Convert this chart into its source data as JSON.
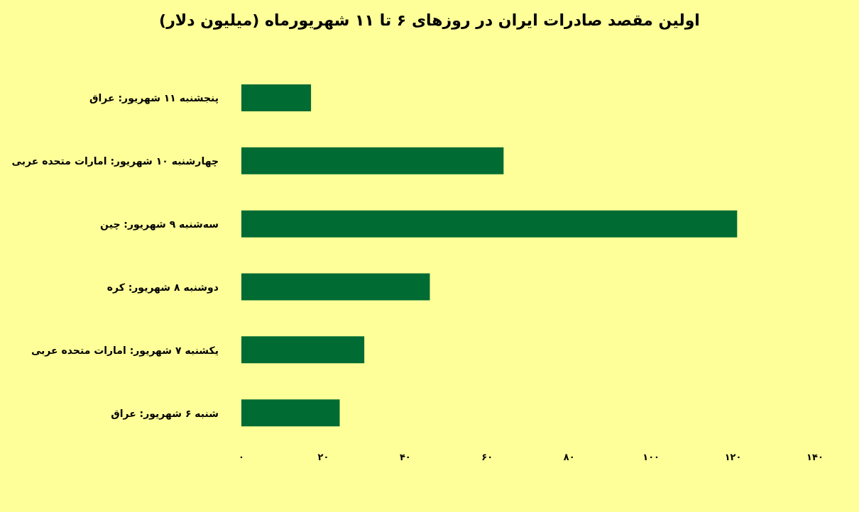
{
  "chart_data": {
    "type": "bar",
    "orientation": "horizontal",
    "title": "اولین مقصد صادرات ایران در روزهای ۶ تا ۱۱ شهریورماه (میلیون دلار)",
    "categories": [
      "پنجشنبه ۱۱ شهریور: عراق",
      "چهارشنبه ۱۰ شهریور: امارات متحده عربی",
      "سه‌شنبه ۹ شهریور: چین",
      "دوشنبه ۸ شهریور: کره",
      "یکشنبه ۷ شهریور: امارات متحده عربی",
      "شنبه ۶ شهریور: عراق"
    ],
    "values": [
      17,
      64,
      121,
      46,
      30,
      24
    ],
    "color": "#006b33",
    "xlim": [
      0,
      140
    ],
    "xticks": [
      {
        "value": 0,
        "label": "۰"
      },
      {
        "value": 20,
        "label": "۲۰"
      },
      {
        "value": 40,
        "label": "۴۰"
      },
      {
        "value": 60,
        "label": "۶۰"
      },
      {
        "value": 80,
        "label": "۸۰"
      },
      {
        "value": 100,
        "label": "۱۰۰"
      },
      {
        "value": 120,
        "label": "۱۲۰"
      },
      {
        "value": 140,
        "label": "۱۴۰"
      }
    ]
  }
}
